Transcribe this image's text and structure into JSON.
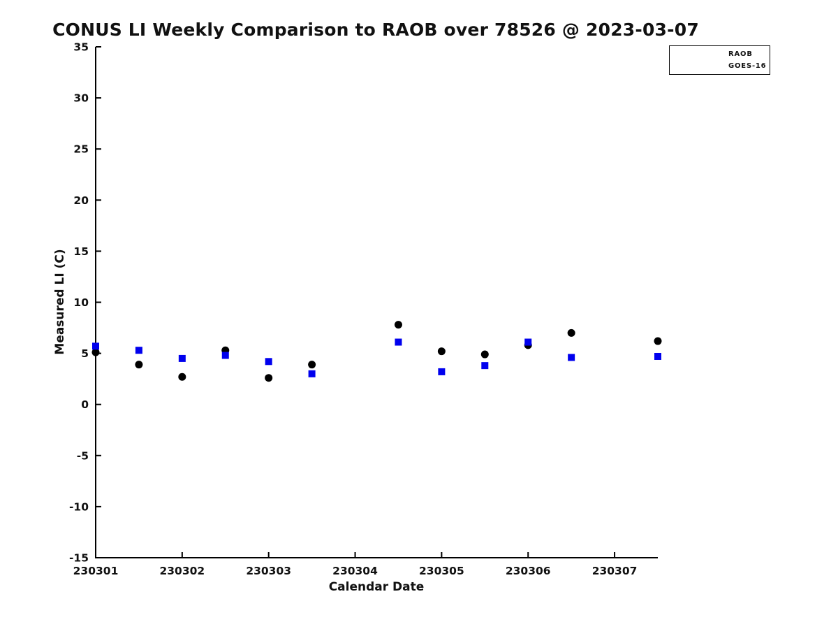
{
  "figure": {
    "title": "CONUS LI Weekly Comparison to RAOB over 78526 @ 2023-03-07"
  },
  "colors": {
    "raob_plot_marker": "#000000",
    "goes16_marker": "#0000EE",
    "legend_marker": "#0000EE",
    "axis": "#000000",
    "text": "#111111",
    "background": "#ffffff"
  },
  "chart_data": {
    "type": "scatter",
    "title": "CONUS LI Weekly Comparison to RAOB over 78526 @ 2023-03-07",
    "xlabel": "Calendar Date",
    "ylabel": "Measured LI (C)",
    "xlim": [
      230301,
      230307.5
    ],
    "ylim": [
      -15,
      35
    ],
    "xticks": [
      230301,
      230302,
      230303,
      230304,
      230305,
      230306,
      230307
    ],
    "xtick_labels": [
      "230301",
      "230302",
      "230303",
      "230304",
      "230305",
      "230306",
      "230307"
    ],
    "yticks": [
      -15,
      -10,
      -5,
      0,
      5,
      10,
      15,
      20,
      25,
      30,
      35
    ],
    "ytick_labels": [
      "-15",
      "-10",
      "-5",
      "0",
      "5",
      "10",
      "15",
      "20",
      "25",
      "30",
      "35"
    ],
    "grid": false,
    "legend": {
      "position": "top-right",
      "entries": [
        {
          "label": "RAOB",
          "marker": "circle",
          "color": "#0000EE"
        },
        {
          "label": "GOES-16",
          "marker": "square",
          "color": "#0000EE"
        }
      ]
    },
    "series": [
      {
        "name": "RAOB",
        "marker": "circle",
        "color": "#000000",
        "x": [
          230301.0,
          230301.5,
          230302.0,
          230302.5,
          230303.0,
          230303.5,
          230304.5,
          230305.0,
          230305.5,
          230306.0,
          230306.5,
          230307.5
        ],
        "y": [
          5.1,
          3.9,
          2.7,
          5.3,
          2.6,
          3.9,
          7.8,
          5.2,
          4.9,
          5.8,
          7.0,
          6.2
        ]
      },
      {
        "name": "GOES-16",
        "marker": "square",
        "color": "#0000EE",
        "x": [
          230301.0,
          230301.5,
          230302.0,
          230302.5,
          230303.0,
          230303.5,
          230304.5,
          230305.0,
          230305.5,
          230306.0,
          230306.5,
          230307.5
        ],
        "y": [
          5.7,
          5.3,
          4.5,
          4.8,
          4.2,
          3.0,
          6.1,
          3.2,
          3.8,
          6.1,
          4.6,
          4.7
        ]
      }
    ]
  }
}
